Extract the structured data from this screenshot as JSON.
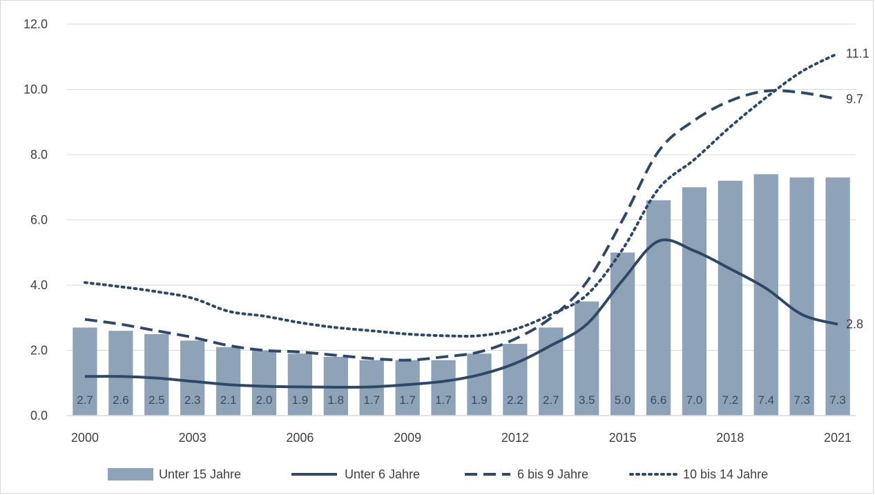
{
  "chart_data": {
    "type": "bar",
    "title": "",
    "xlabel": "",
    "ylabel": "",
    "ylim": [
      0,
      12
    ],
    "yticks": [
      "0.0",
      "2.0",
      "4.0",
      "6.0",
      "8.0",
      "10.0",
      "12.0"
    ],
    "x": [
      2000,
      2001,
      2002,
      2003,
      2004,
      2005,
      2006,
      2007,
      2008,
      2009,
      2010,
      2011,
      2012,
      2013,
      2014,
      2015,
      2016,
      2017,
      2018,
      2019,
      2020,
      2021
    ],
    "xtick_labels": [
      "2000",
      "2003",
      "2006",
      "2009",
      "2012",
      "2015",
      "2018",
      "2021"
    ],
    "grid": "horizontal",
    "legend_position": "bottom",
    "colors": {
      "bars": "#8ea3b8",
      "lines": "#2f4866",
      "grid": "#d9d9d9",
      "text": "#404040"
    },
    "series": [
      {
        "name": "Unter 15  Jahre",
        "kind": "bar",
        "values": [
          2.7,
          2.6,
          2.5,
          2.3,
          2.1,
          2.0,
          1.9,
          1.8,
          1.7,
          1.7,
          1.7,
          1.9,
          2.2,
          2.7,
          3.5,
          5.0,
          6.6,
          7.0,
          7.2,
          7.4,
          7.3,
          7.3
        ],
        "labels": [
          "2.7",
          "2.6",
          "2.5",
          "2.3",
          "2.1",
          "2.0",
          "1.9",
          "1.8",
          "1.7",
          "1.7",
          "1.7",
          "1.9",
          "2.2",
          "2.7",
          "3.5",
          "5.0",
          "6.6",
          "7.0",
          "7.2",
          "7.4",
          "7.3",
          "7.3"
        ]
      },
      {
        "name": "Unter 6 Jahre",
        "kind": "line",
        "style": "solid",
        "values": [
          1.2,
          1.2,
          1.15,
          1.05,
          0.95,
          0.9,
          0.88,
          0.87,
          0.88,
          0.95,
          1.05,
          1.25,
          1.6,
          2.15,
          2.8,
          4.15,
          5.35,
          5.05,
          4.5,
          3.9,
          3.1,
          2.8
        ],
        "end_label": "2.8"
      },
      {
        "name": "6 bis 9 Jahre",
        "kind": "line",
        "style": "dashed",
        "values": [
          2.95,
          2.8,
          2.6,
          2.4,
          2.15,
          2.0,
          1.95,
          1.85,
          1.75,
          1.7,
          1.8,
          1.95,
          2.35,
          3.0,
          4.1,
          6.0,
          8.1,
          9.05,
          9.65,
          9.95,
          9.9,
          9.7
        ],
        "end_label": "9.7"
      },
      {
        "name": "10 bis 14 Jahre",
        "kind": "line",
        "style": "dotted",
        "values": [
          4.08,
          3.95,
          3.8,
          3.6,
          3.2,
          3.05,
          2.85,
          2.7,
          2.6,
          2.5,
          2.45,
          2.45,
          2.65,
          3.1,
          3.7,
          5.1,
          6.95,
          7.85,
          8.85,
          9.75,
          10.55,
          11.1
        ],
        "end_label": "11.1"
      }
    ]
  }
}
